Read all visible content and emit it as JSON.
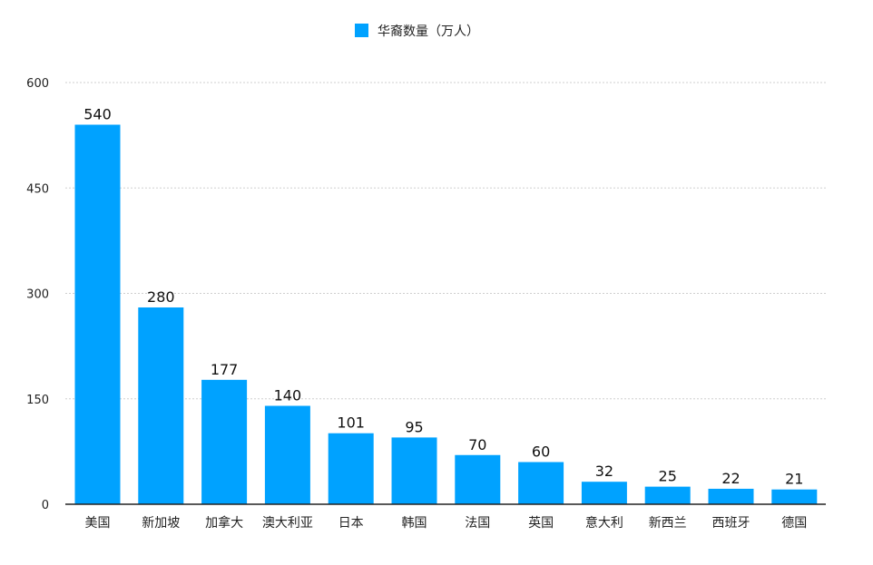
{
  "chart_data": {
    "type": "bar",
    "categories": [
      "美国",
      "新加坡",
      "加拿大",
      "澳大利亚",
      "日本",
      "韩国",
      "法国",
      "英国",
      "意大利",
      "新西兰",
      "西班牙",
      "德国"
    ],
    "series": [
      {
        "name": "华裔数量（万人）",
        "values": [
          540,
          280,
          177,
          140,
          101,
          95,
          70,
          60,
          32,
          25,
          22,
          21
        ],
        "color": "#00a2ff"
      }
    ],
    "ylim": [
      0,
      600
    ],
    "yticks": [
      0,
      150,
      300,
      450,
      600
    ],
    "grid": true,
    "legend_position": "top-center",
    "data_labels": true
  }
}
